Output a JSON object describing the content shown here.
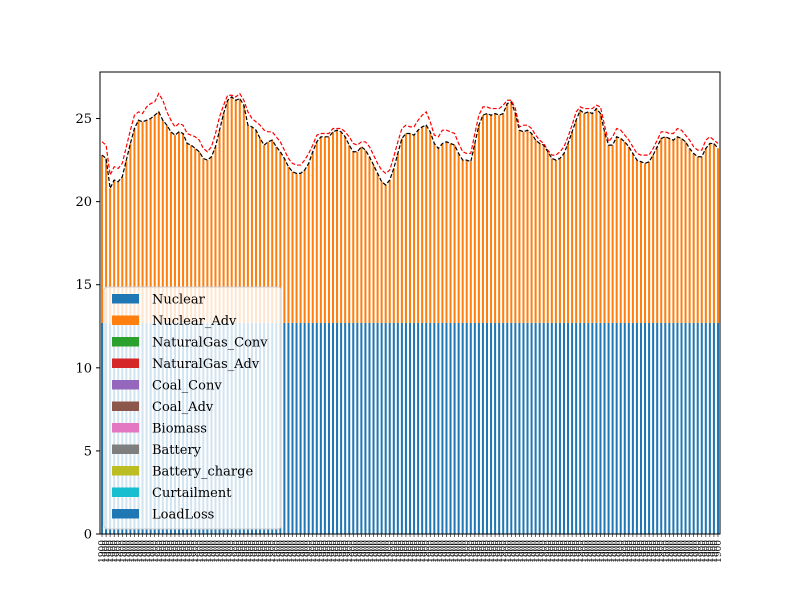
{
  "chart_data": {
    "type": "bar",
    "stacked": true,
    "title": "",
    "xlabel": "",
    "ylabel": "",
    "ylim": [
      0,
      27.8
    ],
    "yticks": [
      0,
      5,
      10,
      15,
      20,
      25
    ],
    "grid": false,
    "legend_position": "lower-left",
    "legend": [
      "Nuclear",
      "Nuclear_Adv",
      "NaturalGas_Conv",
      "NaturalGas_Adv",
      "Coal_Conv",
      "Coal_Adv",
      "Biomass",
      "Battery",
      "Battery_charge",
      "Curtailment",
      "LoadLoss"
    ],
    "colors": {
      "Nuclear": "#1f77b4",
      "Nuclear_Adv": "#ff7f0e",
      "NaturalGas_Conv": "#2ca02c",
      "NaturalGas_Adv": "#d62728",
      "Coal_Conv": "#9467bd",
      "Coal_Adv": "#8c564b",
      "Biomass": "#e377c2",
      "Battery": "#7f7f7f",
      "Battery_charge": "#bcbd22",
      "Curtailment": "#17becf",
      "LoadLoss": "#1f77b4",
      "demand_line": "#000000",
      "upper_line": "#ff0000"
    },
    "x_tick_label": "1900",
    "series": [
      {
        "name": "Nuclear",
        "constant_value": 12.7
      },
      {
        "name": "Nuclear_Adv",
        "values": [
          22.8,
          22.6,
          20.8,
          21.3,
          21.2,
          21.5,
          22.5,
          23.5,
          24.4,
          24.9,
          24.8,
          24.9,
          25.0,
          25.2,
          25.4,
          24.9,
          24.6,
          24.2,
          24.0,
          24.2,
          24.1,
          23.5,
          23.4,
          23.2,
          23.0,
          22.6,
          22.5,
          22.7,
          23.3,
          24.3,
          25.3,
          26.1,
          26.3,
          26.1,
          26.2,
          25.8,
          24.6,
          24.5,
          24.3,
          23.8,
          23.4,
          23.6,
          23.7,
          23.3,
          23.0,
          22.6,
          22.1,
          21.8,
          21.7,
          21.7,
          21.9,
          22.3,
          23.0,
          23.6,
          23.9,
          23.9,
          23.9,
          24.2,
          24.3,
          24.2,
          23.9,
          23.4,
          23.0,
          23.0,
          23.3,
          23.1,
          22.7,
          22.2,
          21.7,
          21.2,
          21.0,
          21.3,
          22.0,
          22.9,
          23.8,
          24.1,
          24.1,
          24.0,
          24.3,
          24.5,
          24.6,
          24.2,
          23.5,
          23.2,
          23.5,
          23.6,
          23.5,
          23.4,
          22.9,
          22.5,
          22.5,
          22.4,
          23.5,
          24.6,
          25.2,
          25.3,
          25.2,
          25.3,
          25.2,
          25.3,
          25.9,
          26.0,
          25.3,
          24.3,
          24.2,
          24.3,
          24.1,
          23.7,
          23.5,
          23.4,
          23.0,
          22.6,
          22.5,
          22.6,
          22.9,
          23.5,
          24.2,
          24.9,
          25.5,
          25.3,
          25.4,
          25.3,
          25.6,
          25.3,
          24.2,
          23.4,
          23.4,
          23.9,
          23.8,
          23.6,
          23.3,
          22.9,
          22.5,
          22.4,
          22.3,
          22.4,
          22.8,
          23.3,
          23.8,
          23.9,
          23.8,
          23.7,
          23.9,
          23.8,
          23.6,
          23.2,
          22.9,
          22.7,
          22.7,
          23.2,
          23.5,
          23.5,
          23.2
        ]
      },
      {
        "name": "demand",
        "values": [
          22.8,
          22.6,
          20.8,
          21.3,
          21.2,
          21.5,
          22.5,
          23.5,
          24.4,
          24.9,
          24.8,
          24.9,
          25.0,
          25.2,
          25.4,
          24.9,
          24.6,
          24.2,
          24.0,
          24.2,
          24.1,
          23.5,
          23.4,
          23.2,
          23.0,
          22.6,
          22.5,
          22.7,
          23.3,
          24.3,
          25.3,
          26.1,
          26.3,
          26.1,
          26.2,
          25.8,
          24.6,
          24.5,
          24.3,
          23.8,
          23.4,
          23.6,
          23.7,
          23.3,
          23.0,
          22.6,
          22.1,
          21.8,
          21.7,
          21.7,
          21.9,
          22.3,
          23.0,
          23.6,
          23.9,
          23.9,
          23.9,
          24.2,
          24.3,
          24.2,
          23.9,
          23.4,
          23.0,
          23.0,
          23.3,
          23.1,
          22.7,
          22.2,
          21.7,
          21.2,
          21.0,
          21.3,
          22.0,
          22.9,
          23.8,
          24.1,
          24.1,
          24.0,
          24.3,
          24.5,
          24.6,
          24.2,
          23.5,
          23.2,
          23.5,
          23.6,
          23.5,
          23.4,
          22.9,
          22.5,
          22.5,
          22.4,
          23.5,
          24.6,
          25.2,
          25.3,
          25.2,
          25.3,
          25.2,
          25.3,
          25.9,
          26.0,
          25.3,
          24.3,
          24.2,
          24.3,
          24.1,
          23.7,
          23.5,
          23.4,
          23.0,
          22.6,
          22.5,
          22.6,
          22.9,
          23.5,
          24.2,
          24.9,
          25.5,
          25.3,
          25.4,
          25.3,
          25.6,
          25.3,
          24.2,
          23.4,
          23.4,
          23.9,
          23.8,
          23.6,
          23.3,
          22.9,
          22.5,
          22.4,
          22.3,
          22.4,
          22.8,
          23.3,
          23.8,
          23.9,
          23.8,
          23.7,
          23.9,
          23.8,
          23.6,
          23.2,
          22.9,
          22.7,
          22.7,
          23.2,
          23.5,
          23.5,
          23.2
        ]
      },
      {
        "name": "upper",
        "values": [
          23.6,
          23.4,
          21.6,
          22.1,
          22.0,
          22.3,
          23.3,
          24.3,
          25.2,
          25.4,
          25.3,
          25.7,
          25.9,
          26.0,
          26.5,
          26.1,
          25.4,
          24.9,
          24.5,
          24.7,
          24.6,
          24.1,
          24.0,
          23.9,
          23.7,
          23.2,
          23.0,
          23.3,
          24.1,
          25.1,
          25.8,
          26.4,
          26.4,
          26.3,
          26.5,
          26.1,
          25.4,
          25.0,
          24.8,
          24.6,
          24.3,
          24.2,
          24.2,
          23.9,
          23.6,
          23.1,
          22.6,
          22.3,
          22.2,
          22.2,
          22.5,
          22.9,
          23.4,
          24.0,
          24.1,
          24.1,
          24.1,
          24.4,
          24.4,
          24.4,
          24.2,
          23.9,
          23.5,
          23.4,
          23.6,
          23.6,
          23.3,
          22.8,
          22.3,
          21.9,
          21.7,
          21.9,
          22.7,
          23.6,
          24.4,
          24.6,
          24.5,
          24.5,
          24.9,
          25.2,
          25.4,
          24.8,
          24.0,
          23.9,
          24.3,
          24.3,
          24.2,
          24.1,
          23.5,
          23.0,
          22.9,
          22.9,
          24.1,
          25.2,
          25.7,
          25.7,
          25.6,
          25.6,
          25.6,
          25.8,
          26.1,
          26.1,
          25.6,
          24.5,
          24.6,
          24.6,
          24.4,
          24.0,
          23.7,
          23.5,
          23.1,
          22.8,
          22.8,
          23.0,
          23.3,
          23.9,
          24.6,
          25.4,
          25.7,
          25.6,
          25.6,
          25.6,
          25.8,
          25.7,
          24.6,
          23.6,
          23.9,
          24.4,
          24.3,
          24.0,
          23.7,
          23.3,
          22.9,
          22.8,
          22.8,
          22.8,
          23.2,
          23.7,
          24.2,
          24.2,
          24.1,
          24.1,
          24.4,
          24.3,
          24.0,
          23.7,
          23.3,
          23.1,
          23.1,
          23.7,
          23.9,
          23.7,
          23.5
        ]
      }
    ]
  }
}
